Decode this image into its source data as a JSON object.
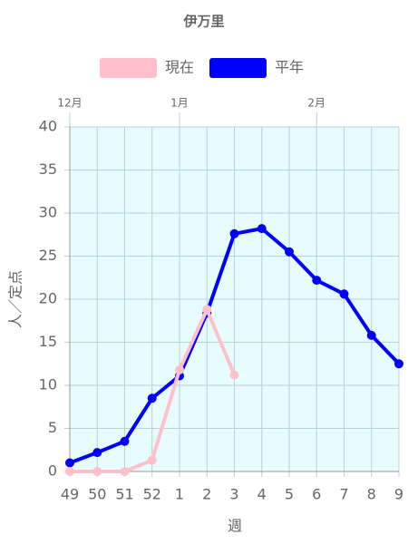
{
  "chart_data": {
    "type": "line",
    "title": "伊万里",
    "categories": [
      "49",
      "50",
      "51",
      "52",
      "1",
      "2",
      "3",
      "4",
      "5",
      "6",
      "7",
      "8",
      "9"
    ],
    "x2_labels": [
      "12月",
      null,
      null,
      null,
      "1月",
      null,
      null,
      null,
      null,
      "2月",
      null,
      null,
      null
    ],
    "xlabel": "週",
    "ylabel": "人／定点",
    "series": [
      {
        "name": "現在",
        "color": "#ffc0cb",
        "values": [
          0,
          0,
          0,
          1.3,
          11.8,
          18.8,
          11.2,
          null,
          null,
          null,
          null,
          null,
          null
        ]
      },
      {
        "name": "平年",
        "color": "#0000ff",
        "values": [
          1.0,
          2.2,
          3.5,
          8.5,
          11.1,
          18.4,
          27.6,
          28.2,
          25.5,
          22.2,
          20.6,
          15.8,
          12.5
        ]
      }
    ],
    "ylim": [
      0,
      40
    ],
    "yticks": [
      0,
      5,
      10,
      15,
      20,
      25,
      30,
      35,
      40
    ],
    "grid": true,
    "legend": "top"
  }
}
